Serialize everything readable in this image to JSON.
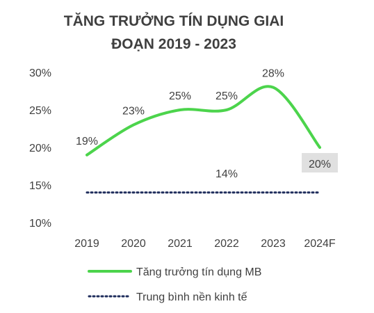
{
  "chart_data": {
    "type": "line",
    "title_line1": "TĂNG TRƯỞNG TÍN DỤNG GIAI",
    "title_line2": "ĐOẠN 2019 - 2023",
    "categories": [
      "2019",
      "2020",
      "2021",
      "2022",
      "2023",
      "2024F"
    ],
    "ylim": [
      10,
      30
    ],
    "yticks": [
      "10%",
      "15%",
      "20%",
      "25%",
      "30%"
    ],
    "grid": false,
    "series": [
      {
        "name": "Tăng trưởng tín dụng MB",
        "values": [
          19,
          23,
          25,
          25,
          28,
          20
        ],
        "labels": [
          "19%",
          "23%",
          "25%",
          "25%",
          "28%",
          "20%"
        ],
        "color": "#4cd44c",
        "style": "solid-smooth"
      },
      {
        "name": "Trung bình nền kinh tế",
        "values": [
          14,
          14,
          14,
          14,
          14,
          14
        ],
        "labels": [
          "14%"
        ],
        "color": "#1f2d5c",
        "style": "dotted"
      }
    ],
    "highlight_label_bg": "#e0e0e0",
    "legend_position": "bottom"
  }
}
